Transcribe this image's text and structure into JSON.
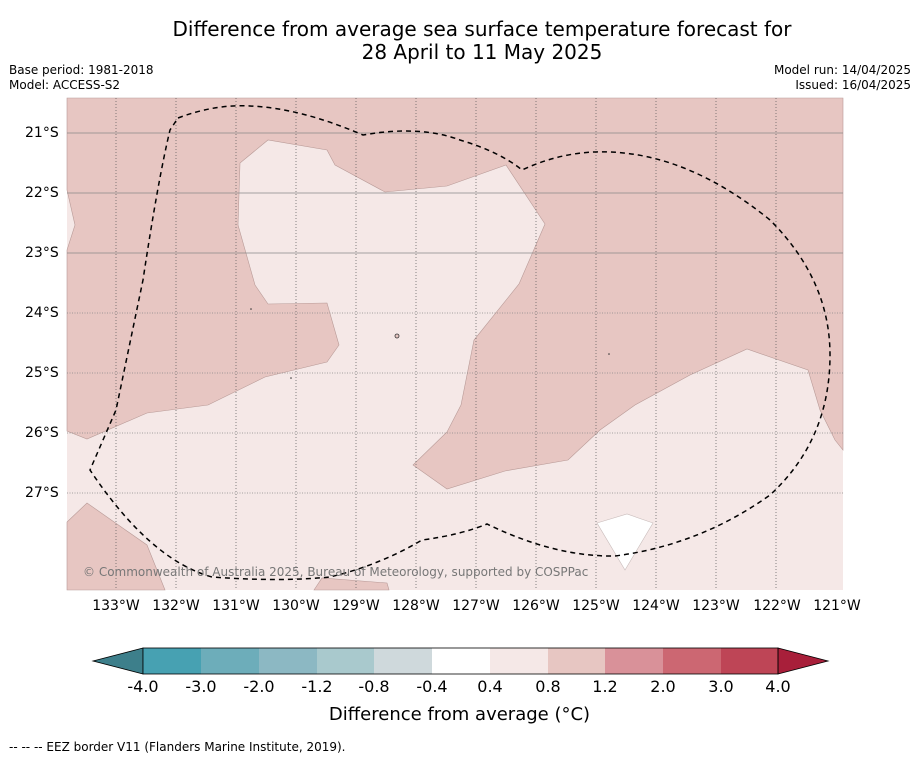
{
  "title_line1": "Difference from average sea surface temperature forecast for",
  "title_line2": "28 April to 11 May 2025",
  "base_period": "Base period: 1981-2018",
  "model": "Model: ACCESS-S2",
  "model_run": "Model run: 14/04/2025",
  "issued": "Issued: 16/04/2025",
  "copyright": "© Commonwealth of Australia 2025, Bureau of Meteorology, supported by COSPPac",
  "lat_labels": [
    "21°S",
    "22°S",
    "23°S",
    "24°S",
    "25°S",
    "26°S",
    "27°S"
  ],
  "lon_labels": [
    "133°W",
    "132°W",
    "131°W",
    "130°W",
    "129°W",
    "128°W",
    "127°W",
    "126°W",
    "125°W",
    "124°W",
    "123°W",
    "122°W",
    "121°W"
  ],
  "colorbar": {
    "title": "Difference from average (°C)",
    "ticks": [
      "-4.0",
      "-3.0",
      "-2.0",
      "-1.2",
      "-0.8",
      "-0.4",
      "0.4",
      "0.8",
      "1.2",
      "2.0",
      "3.0",
      "4.0"
    ],
    "colors": [
      "#3d7f8b",
      "#47a1b2",
      "#6dadba",
      "#8cb8c3",
      "#a9c9cd",
      "#cfd9dc",
      "#ffffff",
      "#f5e8e7",
      "#e7c6c2",
      "#d99199",
      "#cc6772",
      "#be4556",
      "#a81f3a"
    ]
  },
  "footnote": "--  --  -- EEZ border V11 (Flanders Marine Institute, 2019).",
  "colors": {
    "anomaly_0_4_to_0_8": "#f5e8e7",
    "anomaly_0_8_to_1_2": "#e7c6c2",
    "anomaly_neutral": "#ffffff"
  }
}
